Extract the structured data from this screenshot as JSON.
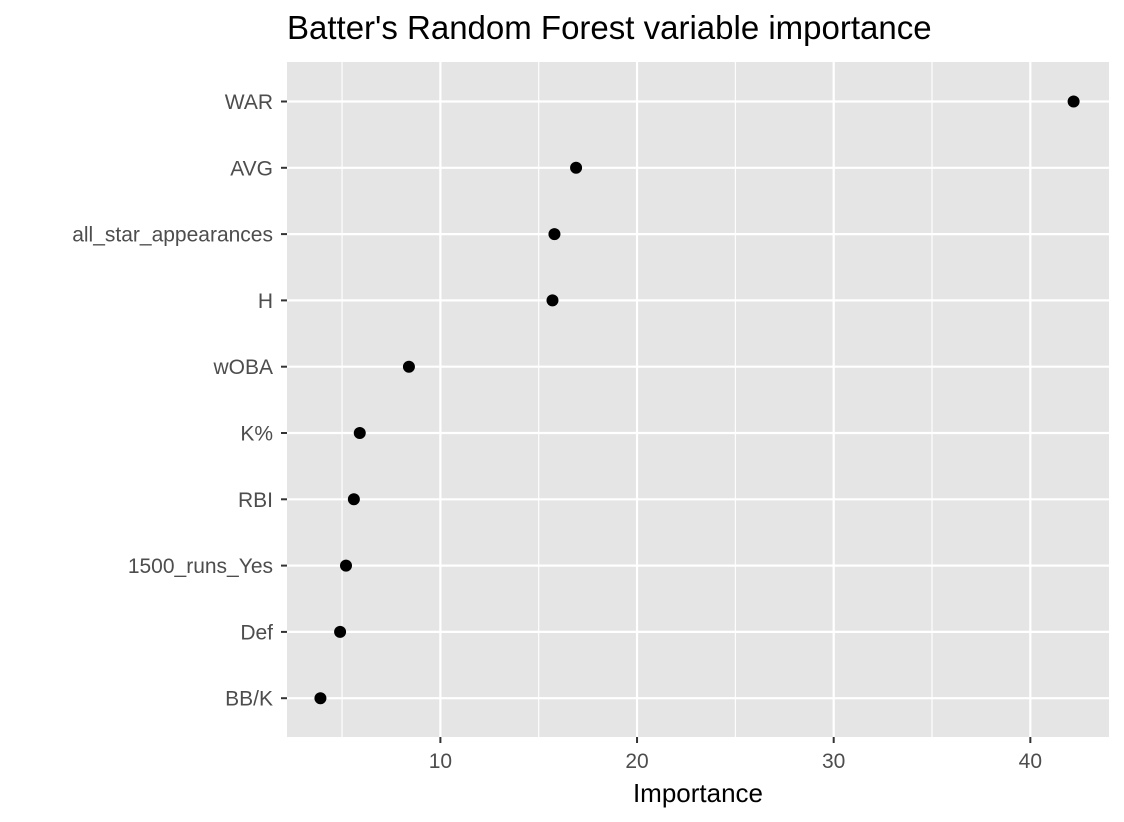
{
  "chart_data": {
    "type": "scatter",
    "title": "Batter's Random Forest variable importance",
    "xlabel": "Importance",
    "ylabel": "",
    "categories": [
      "WAR",
      "AVG",
      "all_star_appearances",
      "H",
      "wOBA",
      "K%",
      "RBI",
      "1500_runs_Yes",
      "Def",
      "BB/K"
    ],
    "values": [
      42.2,
      16.9,
      15.8,
      15.7,
      8.4,
      5.9,
      5.6,
      5.2,
      4.9,
      3.9
    ],
    "xlim": [
      2.2,
      44.0
    ],
    "xticks": [
      10,
      20,
      30,
      40
    ],
    "grid": true,
    "legend": "none",
    "colors": {
      "panel": "#e5e5e5",
      "grid": "#ffffff",
      "point": "#000000",
      "tick": "#333333",
      "tick_label": "#4d4d4d"
    }
  }
}
